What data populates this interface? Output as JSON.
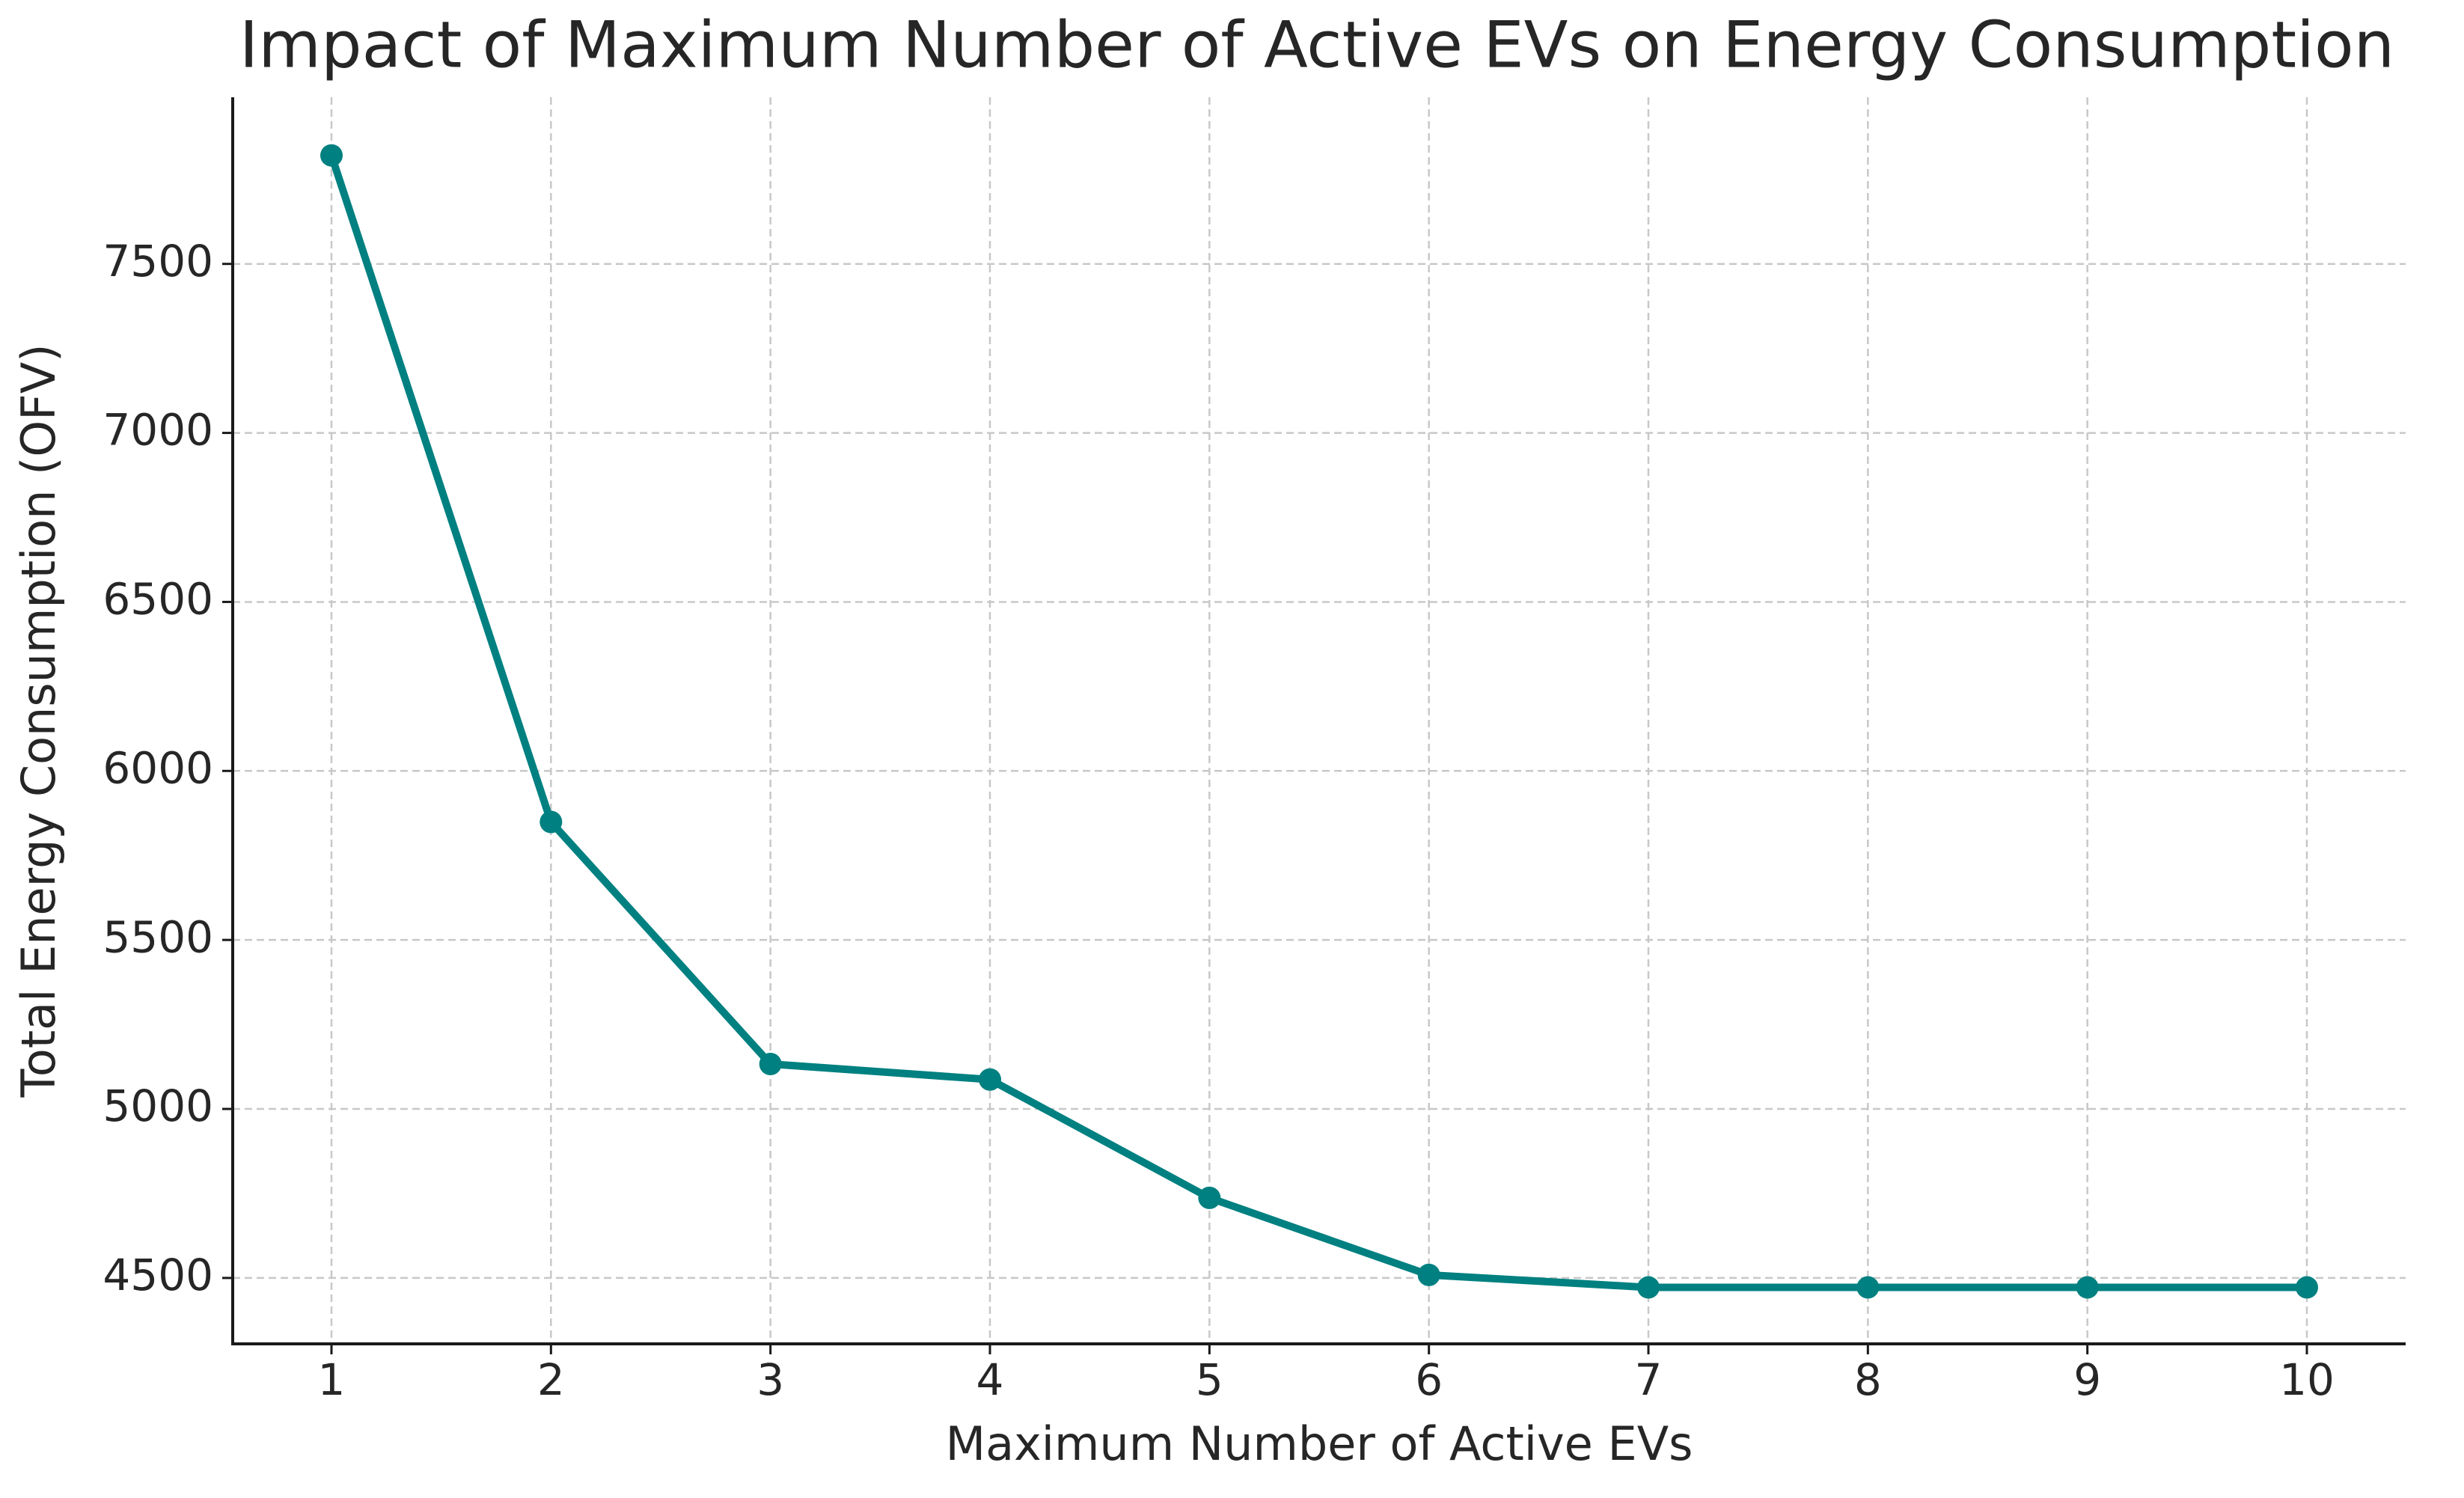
{
  "chart_data": {
    "type": "line",
    "title": "Impact of Maximum Number of Active EVs on Energy Consumption",
    "x_label": "Maximum Number of Active EVs",
    "y_label": "Total Energy Consumption (OFV)",
    "x": [
      1,
      2,
      3,
      4,
      5,
      6,
      7,
      8,
      9,
      10
    ],
    "series": [
      {
        "name": "Total Energy Consumption",
        "color": "#008080",
        "values": [
          7821,
          5849,
          5133,
          5087,
          4737,
          4509,
          4472,
          4472,
          4472,
          4472
        ]
      }
    ],
    "xlim": [
      0.55,
      10.45
    ],
    "xticks": [
      1,
      2,
      3,
      4,
      5,
      6,
      7,
      8,
      9,
      10
    ],
    "ylim": [
      4305,
      7993
    ],
    "yticks": [
      4500,
      5000,
      5500,
      6000,
      6500,
      7000,
      7500
    ],
    "grid": true,
    "legend": false
  }
}
